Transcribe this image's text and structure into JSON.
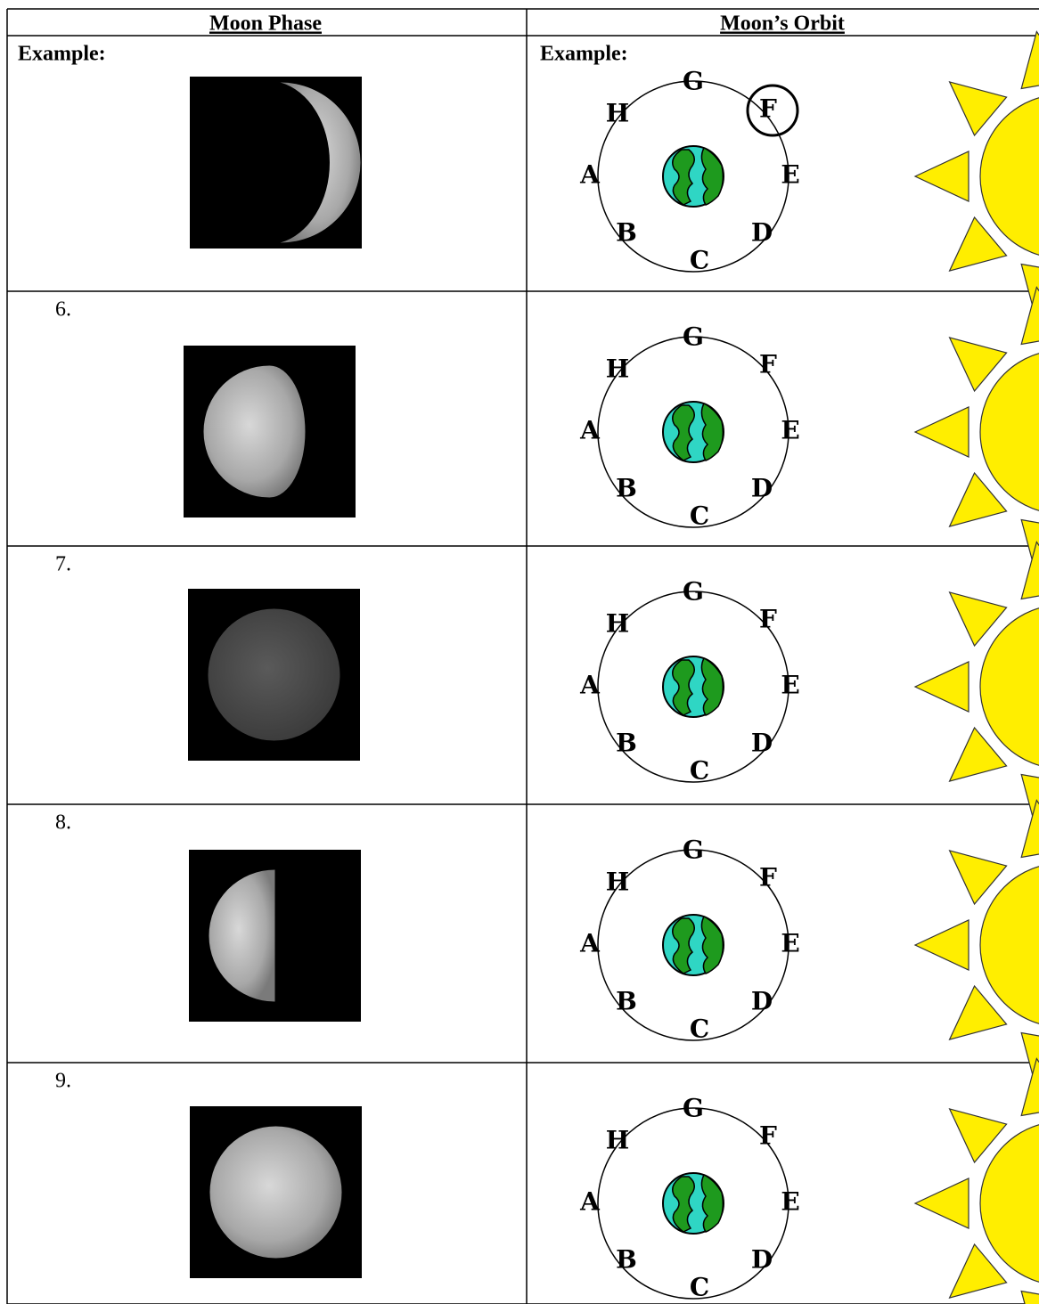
{
  "header": {
    "left": "Moon Phase",
    "right": "Moon’s Orbit"
  },
  "rows": [
    {
      "label": "Example:",
      "orbit_label": "Example:",
      "letters": [
        "G",
        "H",
        "F",
        "A",
        "E",
        "B",
        "D",
        "C"
      ]
    },
    {
      "label": "6.",
      "letters": [
        "G",
        "H",
        "F",
        "A",
        "E",
        "B",
        "D",
        "C"
      ]
    },
    {
      "label": "7.",
      "letters": [
        "G",
        "H",
        "F",
        "A",
        "E",
        "B",
        "D",
        "C"
      ]
    },
    {
      "label": "8.",
      "letters": [
        "G",
        "H",
        "F",
        "A",
        "E",
        "B",
        "D",
        "C"
      ]
    },
    {
      "label": "9.",
      "letters": [
        "G",
        "H",
        "F",
        "A",
        "E",
        "B",
        "D",
        "C"
      ]
    }
  ]
}
